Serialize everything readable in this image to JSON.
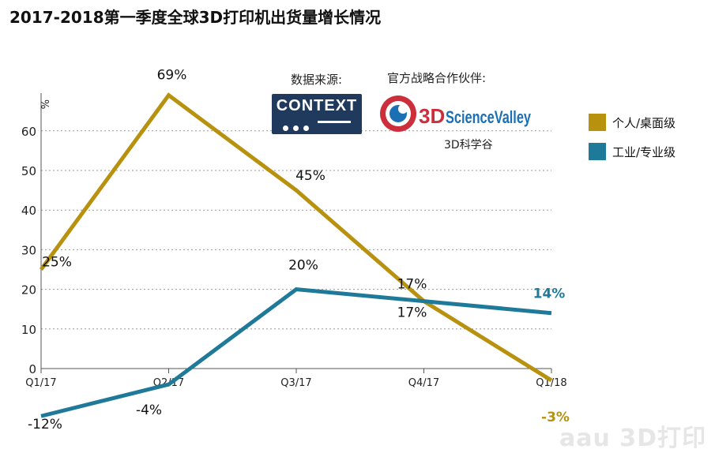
{
  "title": "2017-2018第一季度全球3D打印机出货量增长情况",
  "source_label": "数据来源:",
  "partner_label": "官方战略合作伙伴:",
  "context_logo_text": "CONTEXT",
  "partner_logo_text": "3DScienceValley",
  "partner_cn": "3D科学谷",
  "watermark": "aau 3D打印",
  "colors": {
    "desktop": "#B8910F",
    "industrial": "#1F7A9A",
    "grid": "#999999"
  },
  "chart_data": {
    "type": "line",
    "title": "2017-2018第一季度全球3D打印机出货量增长情况",
    "ylabel": "%",
    "xlabel": "",
    "categories": [
      "Q1/17",
      "Q2/17",
      "Q3/17",
      "Q4/17",
      "Q1/18"
    ],
    "yticks": [
      0,
      10,
      20,
      30,
      40,
      50,
      60
    ],
    "ylim": [
      -15,
      70
    ],
    "grid": "horizontal dotted",
    "legend_position": "right",
    "series": [
      {
        "name": "个人/桌面级",
        "values": [
          25,
          69,
          45,
          17,
          -3
        ],
        "labels": [
          "25%",
          "69%",
          "45%",
          "17%",
          "-3%"
        ]
      },
      {
        "name": "工业/专业级",
        "values": [
          -12,
          -4,
          20,
          17,
          14
        ],
        "labels": [
          "-12%",
          "-4%",
          "20%",
          "17%",
          "14%"
        ]
      }
    ]
  }
}
